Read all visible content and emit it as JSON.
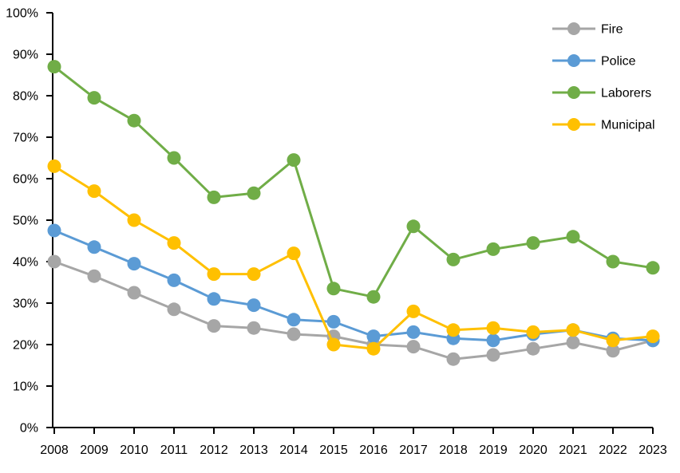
{
  "chart_data": {
    "type": "line",
    "title": "",
    "categories": [
      "2008",
      "2009",
      "2010",
      "2011",
      "2012",
      "2013",
      "2014",
      "2015",
      "2016",
      "2017",
      "2018",
      "2019",
      "2020",
      "2021",
      "2022",
      "2023"
    ],
    "series": [
      {
        "name": "Fire",
        "color": "#A6A6A6",
        "values": [
          40,
          36.5,
          32.5,
          28.5,
          24.5,
          24,
          22.5,
          22,
          20,
          19.5,
          16.5,
          17.5,
          19,
          20.5,
          18.5,
          21
        ]
      },
      {
        "name": "Police",
        "color": "#5B9BD5",
        "values": [
          47.5,
          43.5,
          39.5,
          35.5,
          31,
          29.5,
          26,
          25.5,
          22,
          23,
          21.5,
          21,
          22.5,
          23.5,
          21.5,
          21
        ]
      },
      {
        "name": "Laborers",
        "color": "#70AD47",
        "values": [
          87,
          79.5,
          74,
          65,
          55.5,
          56.5,
          64.5,
          33.5,
          31.5,
          48.5,
          40.5,
          43,
          44.5,
          46,
          40,
          38.5
        ]
      },
      {
        "name": "Municipal",
        "color": "#FFC000",
        "values": [
          63,
          57,
          50,
          44.5,
          37,
          37,
          42,
          20,
          19,
          28,
          23.5,
          24,
          23,
          23.5,
          21,
          22
        ]
      }
    ],
    "ylim": [
      0,
      100
    ],
    "y_tick_step": 10,
    "y_tick_labels": [
      "0%",
      "10%",
      "20%",
      "30%",
      "40%",
      "50%",
      "60%",
      "70%",
      "80%",
      "90%",
      "100%"
    ],
    "x_tick_labels": [
      "2008",
      "2009",
      "2010",
      "2011",
      "2012",
      "2013",
      "2014",
      "2015",
      "2016",
      "2017",
      "2018",
      "2019",
      "2020",
      "2021",
      "2022",
      "2023"
    ],
    "legend_position": "top-right",
    "legend_items": [
      "Fire",
      "Police",
      "Laborers",
      "Municipal"
    ],
    "grid": false,
    "axis_color": "#000000",
    "background_color": "#FFFFFF"
  }
}
